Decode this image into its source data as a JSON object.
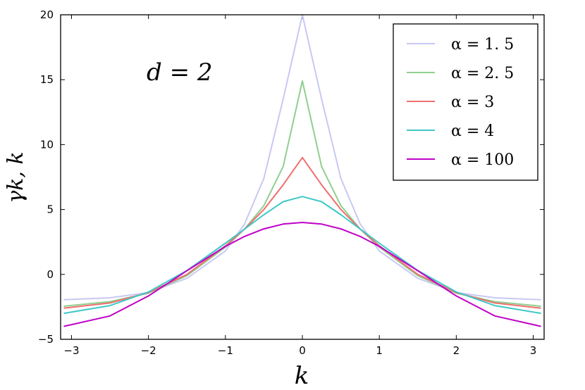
{
  "chart_data": {
    "type": "line",
    "xlabel": "k",
    "ylabel": "γk, k",
    "annotation": "d = 2",
    "xlim": [
      -3.14159,
      3.14159
    ],
    "ylim": [
      -5,
      20
    ],
    "xticks": [
      -3,
      -2,
      -1,
      0,
      1,
      2,
      3
    ],
    "yticks": [
      -5,
      0,
      5,
      10,
      15,
      20
    ],
    "x": [
      -3.1,
      -2.5,
      -2,
      -1.5,
      -1,
      -0.75,
      -0.5,
      -0.25,
      0,
      0.25,
      0.5,
      0.75,
      1,
      1.5,
      2,
      2.5,
      3.1
    ],
    "series": [
      {
        "name": "α = 1. 5",
        "color": "#c8c8f4",
        "values": [
          -1.95,
          -1.8,
          -1.4,
          -0.3,
          1.8,
          3.9,
          7.4,
          13.5,
          20,
          13.5,
          7.4,
          3.9,
          1.8,
          -0.3,
          -1.4,
          -1.8,
          -1.95
        ]
      },
      {
        "name": "α = 2. 5",
        "color": "#8fcf8f",
        "values": [
          -2.45,
          -2.1,
          -1.45,
          -0.1,
          2.1,
          3.5,
          5.3,
          8.3,
          14.9,
          8.3,
          5.3,
          3.5,
          2.1,
          -0.1,
          -1.45,
          -2.1,
          -2.45
        ]
      },
      {
        "name": "α = 3",
        "color": "#ef6f6f",
        "values": [
          -2.6,
          -2.2,
          -1.4,
          0.0,
          2.2,
          3.5,
          5.0,
          6.9,
          9.0,
          6.9,
          5.0,
          3.5,
          2.2,
          0.0,
          -1.4,
          -2.2,
          -2.6
        ]
      },
      {
        "name": "α = 4",
        "color": "#3ec9c6",
        "values": [
          -3.0,
          -2.4,
          -1.35,
          0.3,
          2.4,
          3.5,
          4.6,
          5.6,
          6.0,
          5.6,
          4.6,
          3.5,
          2.4,
          0.3,
          -1.35,
          -2.4,
          -3.0
        ]
      },
      {
        "name": "α = 100",
        "color": "#c000c8",
        "values": [
          -4.0,
          -3.2,
          -1.66,
          0.28,
          2.16,
          2.93,
          3.51,
          3.88,
          4.0,
          3.88,
          3.51,
          2.93,
          2.16,
          0.28,
          -1.66,
          -3.2,
          -4.0
        ]
      }
    ]
  }
}
